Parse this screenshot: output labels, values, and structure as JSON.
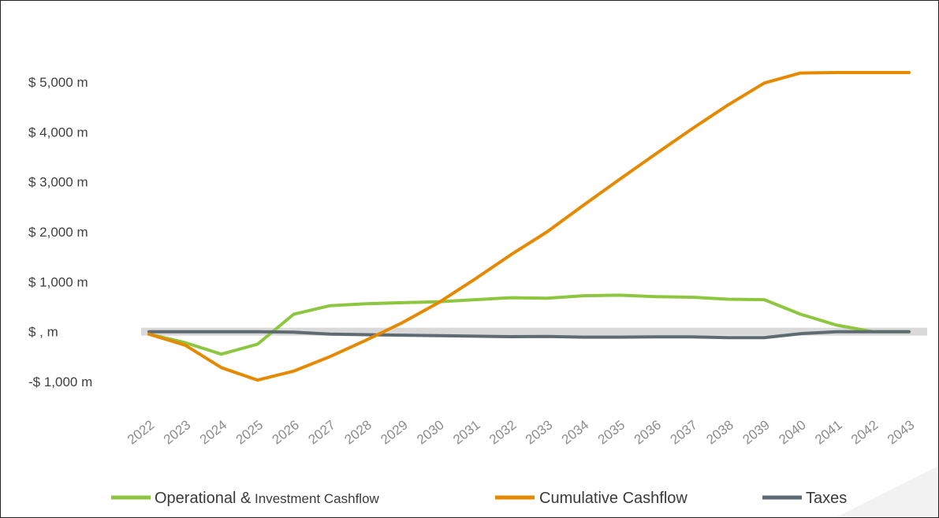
{
  "chart_data": {
    "type": "line",
    "title": "",
    "xlabel": "",
    "ylabel": "",
    "categories": [
      "2022",
      "2023",
      "2024",
      "2025",
      "2026",
      "2027",
      "2028",
      "2029",
      "2030",
      "2031",
      "2032",
      "2033",
      "2034",
      "2035",
      "2036",
      "2037",
      "2038",
      "2039",
      "2040",
      "2041",
      "2042",
      "2043"
    ],
    "y_ticks": [
      {
        "value": 5000,
        "label": "$ 5,000 m"
      },
      {
        "value": 4000,
        "label": "$ 4,000 m"
      },
      {
        "value": 3000,
        "label": "$ 3,000 m"
      },
      {
        "value": 2000,
        "label": "$ 2,000 m"
      },
      {
        "value": 1000,
        "label": "$ 1,000 m"
      },
      {
        "value": 0,
        "label": "$ , m"
      },
      {
        "value": -1000,
        "label": "-$ 1,000 m"
      }
    ],
    "ylim": [
      -1000,
      5000
    ],
    "grid": false,
    "legend_position": "bottom",
    "series": [
      {
        "name": "Operational & Investment Cashflow",
        "color": "#8dc63f",
        "values": [
          -50,
          -220,
          -450,
          -250,
          350,
          520,
          560,
          580,
          600,
          640,
          680,
          670,
          720,
          730,
          700,
          690,
          650,
          640,
          350,
          130,
          0,
          0
        ]
      },
      {
        "name": "Cumulative Cashflow",
        "color": "#e58a00",
        "values": [
          -50,
          -270,
          -720,
          -970,
          -790,
          -500,
          -170,
          180,
          580,
          1050,
          1540,
          2000,
          2530,
          3050,
          3560,
          4060,
          4540,
          4980,
          5180,
          5190,
          5190,
          5190
        ]
      },
      {
        "name": "Taxes",
        "color": "#5f6b73",
        "values": [
          0,
          0,
          0,
          0,
          -10,
          -50,
          -60,
          -70,
          -80,
          -90,
          -100,
          -95,
          -110,
          -110,
          -105,
          -105,
          -120,
          -120,
          -40,
          0,
          0,
          0
        ]
      }
    ],
    "legend_labels": {
      "s0_main": "Operational &",
      "s0_sub": " Investment Cashflow",
      "s1": "Cumulative Cashflow",
      "s2": "Taxes"
    }
  }
}
